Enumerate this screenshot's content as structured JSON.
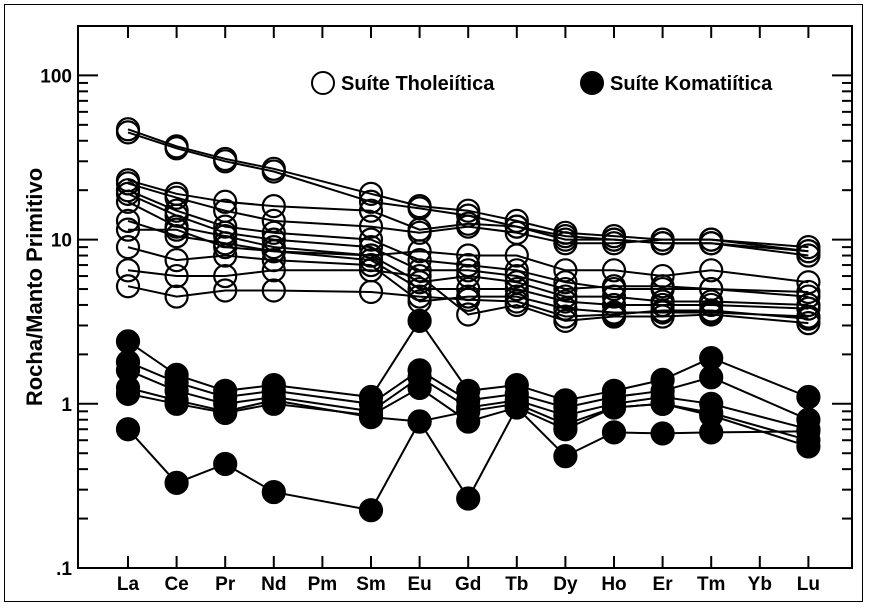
{
  "chart_data": {
    "type": "line",
    "xlabel": "",
    "ylabel": "Rocha/Manto Primitivo",
    "yscale": "log",
    "ylim": [
      0.1,
      200
    ],
    "yticks": [
      {
        "value": 100,
        "label": "100"
      },
      {
        "value": 10,
        "label": "10"
      },
      {
        "value": 1,
        "label": "1"
      },
      {
        "value": 0.1,
        "label": ".1"
      }
    ],
    "grid": false,
    "legend_position": "top",
    "categories": [
      "La",
      "Ce",
      "Pr",
      "Nd",
      "Pm",
      "Sm",
      "Eu",
      "Gd",
      "Tb",
      "Dy",
      "Ho",
      "Er",
      "Tm",
      "Yb",
      "Lu"
    ],
    "legend": [
      {
        "label": "Suíte Tholeiítica",
        "marker": "open"
      },
      {
        "label": "Suíte Komatiítica",
        "marker": "filled"
      }
    ],
    "groups": [
      {
        "name": "Suíte Tholeiítica",
        "marker": "open",
        "samples": [
          [
            47,
            37,
            31,
            27,
            null,
            19,
            16,
            15,
            13,
            11,
            10.5,
            10,
            10,
            null,
            8.5
          ],
          [
            45,
            36,
            30,
            26,
            null,
            17,
            15.5,
            14,
            12,
            10.5,
            10,
            9.5,
            9.5,
            null,
            8
          ],
          [
            23,
            19,
            17,
            16,
            null,
            15,
            11.5,
            12.5,
            12,
            10,
            10,
            9.5,
            9.5,
            null,
            8.5
          ],
          [
            22,
            18,
            15,
            13,
            null,
            12,
            11,
            12,
            11,
            9.5,
            9.5,
            10,
            10,
            null,
            9
          ],
          [
            20,
            15,
            12,
            11,
            null,
            10,
            7.5,
            7,
            6.5,
            5.5,
            5,
            5,
            5,
            null,
            4.8
          ],
          [
            19,
            14,
            11,
            10,
            null,
            9,
            6.5,
            6.5,
            6,
            5,
            5.2,
            5.2,
            5,
            null,
            4.5
          ],
          [
            17,
            12,
            10.5,
            9,
            null,
            8,
            5.5,
            6,
            5.5,
            4.5,
            4.5,
            4.2,
            4.2,
            null,
            4
          ],
          [
            11.5,
            11.5,
            9,
            8.5,
            null,
            7.5,
            5,
            5,
            5,
            4.2,
            4,
            4,
            4,
            null,
            3.8
          ],
          [
            9,
            7.5,
            8,
            7.5,
            null,
            7,
            4.2,
            4.5,
            4.5,
            3.8,
            3.6,
            3.6,
            3.6,
            null,
            3.4
          ],
          [
            6.5,
            6,
            6,
            6.5,
            null,
            6.5,
            6,
            3.5,
            4,
            3.2,
            3.4,
            3.4,
            3.5,
            null,
            3.1
          ],
          [
            5.2,
            4.5,
            4.9,
            4.9,
            null,
            4.8,
            4.5,
            4.3,
            4.2,
            3.4,
            3.5,
            3.7,
            3.7,
            null,
            3.3
          ],
          [
            13,
            10.5,
            9.5,
            8.5,
            null,
            8,
            8.5,
            8,
            8,
            6.5,
            6.5,
            6,
            6.5,
            null,
            5.5
          ]
        ]
      },
      {
        "name": "Suíte Komatiítica",
        "marker": "filled",
        "samples": [
          [
            2.4,
            1.5,
            1.2,
            1.3,
            null,
            1.1,
            3.2,
            1.2,
            1.3,
            1.05,
            1.2,
            1.4,
            1.9,
            null,
            1.1
          ],
          [
            1.8,
            1.35,
            1.1,
            1.2,
            null,
            1.0,
            1.6,
            1.05,
            1.15,
            0.95,
            1.1,
            1.2,
            1.45,
            null,
            0.8
          ],
          [
            1.6,
            1.2,
            1.0,
            1.1,
            null,
            0.9,
            1.45,
            0.95,
            1.05,
            0.85,
            1.0,
            1.1,
            1.0,
            null,
            0.7
          ],
          [
            1.15,
            1.0,
            0.88,
            1.0,
            null,
            0.85,
            1.25,
            0.78,
            0.95,
            0.7,
            0.95,
            1.0,
            0.88,
            null,
            0.6
          ],
          [
            1.25,
            1.05,
            0.9,
            1.05,
            null,
            0.83,
            0.78,
            0.9,
            1.0,
            0.75,
            0.95,
            1.0,
            0.85,
            null,
            0.55
          ],
          [
            0.7,
            0.33,
            0.43,
            0.29,
            null,
            0.225,
            0.78,
            0.265,
            0.95,
            0.48,
            0.67,
            0.66,
            0.67,
            null,
            0.68
          ]
        ]
      }
    ]
  }
}
